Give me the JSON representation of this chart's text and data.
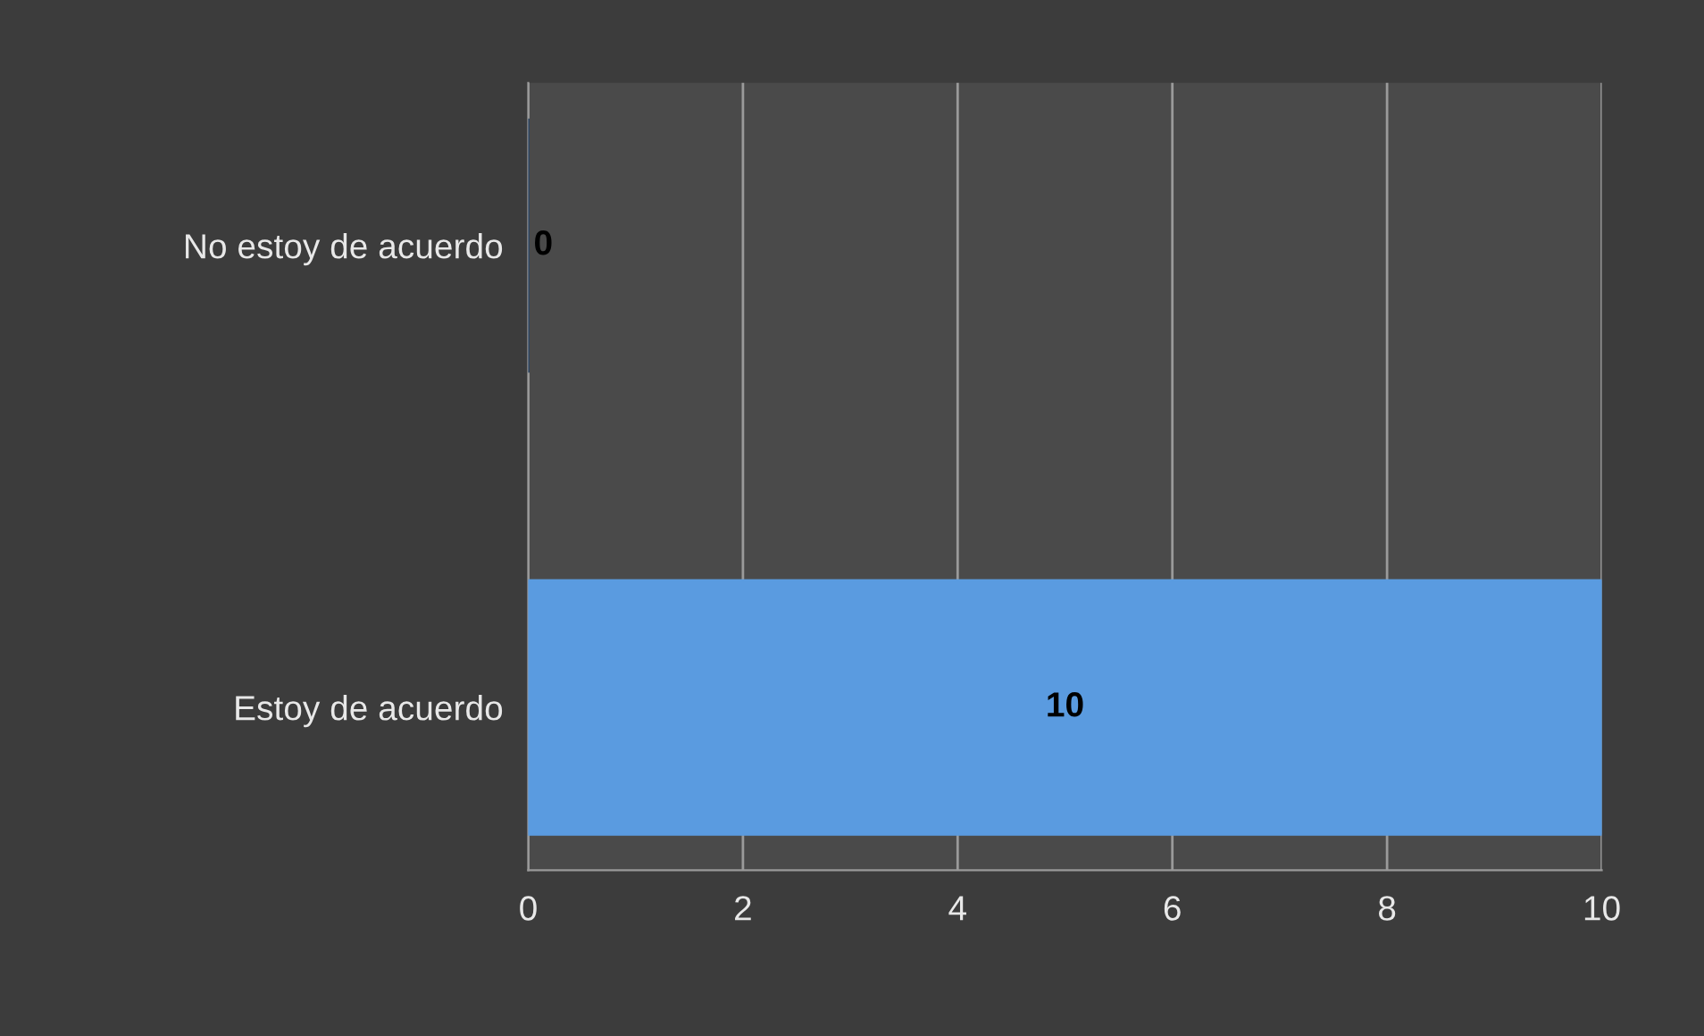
{
  "chart_data": {
    "type": "bar",
    "orientation": "horizontal",
    "categories": [
      "No estoy de acuerdo",
      "Estoy de acuerdo"
    ],
    "values": [
      0,
      10
    ],
    "colors": [
      "#1f3a5a",
      "#5a9be0"
    ],
    "xlim": [
      0,
      10
    ],
    "xticks": [
      0,
      2,
      4,
      6,
      8,
      10
    ],
    "grid": "x",
    "data_labels": true,
    "legend": false
  }
}
